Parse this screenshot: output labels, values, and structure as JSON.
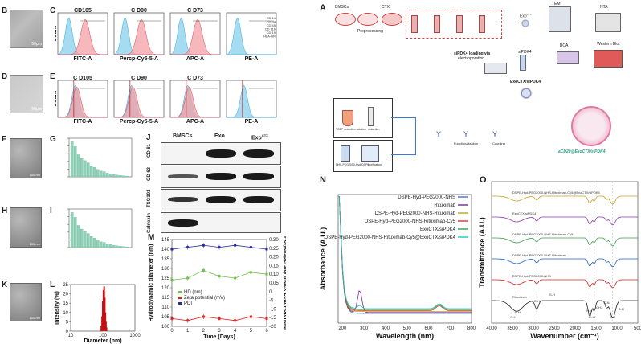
{
  "panels": {
    "B": "B",
    "C": "C",
    "D": "D",
    "E": "E",
    "F": "F",
    "G": "G",
    "H": "H",
    "I": "I",
    "J": "J",
    "K": "K",
    "L": "L",
    "M": "M",
    "A": "A",
    "N": "N",
    "O": "O"
  },
  "flow_C": {
    "titles": [
      "CD105",
      "C D90",
      "C D73",
      ""
    ],
    "xlabels": [
      "FITC-A",
      "Percp-Cy5-5-A",
      "APC-A",
      "PE-A"
    ],
    "ylabel": "Count",
    "legend": [
      "CD 14",
      "CD 34",
      "CD 45",
      "CD 11b",
      "CD 19",
      "HLA-DR"
    ]
  },
  "flow_E": {
    "titles": [
      "C D105",
      "C D90",
      "C D73",
      ""
    ],
    "xlabels": [
      "FITC-A",
      "Percp-Cy5-5-A",
      "APC-A",
      "PE-A"
    ],
    "ylabel": "Count"
  },
  "western_J": {
    "columns": [
      "BMSCs",
      "Exo",
      "Exo"
    ],
    "col3_sup": "CTX",
    "rows": [
      "CD 81",
      "CD 63",
      "TSG101",
      "Calnexin"
    ]
  },
  "scale_bars": {
    "micro": "50µm",
    "tem": "100 nm"
  },
  "chart_data": [
    {
      "id": "L",
      "type": "bar",
      "xlabel": "Diameter (nm)",
      "ylabel": "Intensity (%)",
      "xscale": "log",
      "xlim": [
        10,
        1000
      ],
      "ylim": [
        0,
        25
      ],
      "yticks": [
        0,
        5,
        10,
        15,
        20,
        25
      ],
      "xticks": [
        "10",
        "100",
        "1000"
      ],
      "x": [
        90,
        95,
        100,
        105,
        110,
        115,
        120,
        125,
        130
      ],
      "values": [
        3,
        8,
        16,
        22,
        24,
        18,
        10,
        5,
        2
      ]
    },
    {
      "id": "M",
      "type": "line",
      "title": "",
      "xlabel": "Time (Days)",
      "ylabel": "Hydrodynamic diameter (nm)",
      "ylabel2": "Polydispersity index  Zeta Potential",
      "x": [
        0,
        1,
        2,
        3,
        4,
        5,
        6
      ],
      "xticks": [
        "0",
        "1",
        "2",
        "3",
        "4",
        "5",
        "6"
      ],
      "ylim": [
        100,
        145
      ],
      "yticks": [
        "100",
        "105",
        "110",
        "115",
        "120",
        "125",
        "130",
        "135",
        "140",
        "145"
      ],
      "y2ticks": [
        "-20",
        "-15",
        "-10",
        "-5",
        "0",
        "0.05",
        "0.10",
        "0.15",
        "0.20",
        "0.25",
        "0.30"
      ],
      "series": [
        {
          "name": "HD (nm)",
          "color": "#6fbf4a",
          "values": [
            124,
            125,
            129,
            126,
            125,
            128,
            127
          ]
        },
        {
          "name": "Zeta potential (mV)",
          "color": "#e02020",
          "values": [
            104,
            103,
            105,
            104,
            103,
            105,
            104
          ]
        },
        {
          "name": "PDI",
          "color": "#2a2a9e",
          "values": [
            140,
            141,
            142,
            141,
            142,
            141,
            140
          ]
        }
      ]
    },
    {
      "id": "N",
      "type": "line",
      "xlabel": "Wavelength (nm)",
      "ylabel": "Absorbance (A.U.)",
      "xlim": [
        180,
        800
      ],
      "xticks": [
        "200",
        "300",
        "400",
        "500",
        "600",
        "700",
        "800"
      ],
      "series": [
        {
          "name": "DSPE-Hyd-PEG2000-NHS",
          "color": "#4b6fc4"
        },
        {
          "name": "Rituximab",
          "color": "#7a2a8a"
        },
        {
          "name": "DSPE-Hyd-PEG2000-NHS-Rituximab",
          "color": "#c8a020"
        },
        {
          "name": "DSPE-Hyd-PEG2000-NHS-Rituximab-Cy5",
          "color": "#d23a2a"
        },
        {
          "name": "ExoCTX/siPDK4",
          "color": "#3aa04a"
        },
        {
          "name": "DSPE-Hyd-PEG2000-NHS-Rituximab-Cy5@ExoCTX/siPDK4",
          "color": "#20c0c0"
        }
      ]
    },
    {
      "id": "O",
      "type": "line",
      "xlabel": "Wavenumber (cm⁻¹)",
      "ylabel": "Transmittance (A.U.)",
      "xlim": [
        4000,
        500
      ],
      "xticks": [
        "4000",
        "3500",
        "3000",
        "2500",
        "2000",
        "1500",
        "1000",
        "500"
      ],
      "series": [
        {
          "name": "DSPE-Hyd-PEG2000-NHS-Rituximab-Cy5@ExoCTX/siPDK4",
          "color": "#c8a020"
        },
        {
          "name": "ExoCTX/siPDK4",
          "color": "#8a3ab0"
        },
        {
          "name": "DSPE-Hyd-PEG2000-NHS-Rituximab-Cy5",
          "color": "#3aa04a"
        },
        {
          "name": "DSPE-Hyd-PEG2000-NHS-Rituximab",
          "color": "#2060c0"
        },
        {
          "name": "DSPE-Hyd-PEG2000-NHS",
          "color": "#d02020"
        },
        {
          "name": "Rituximab",
          "color": "#222222"
        }
      ],
      "annotations": [
        "N-H",
        "O-H",
        "C-H",
        "S-H",
        "N-H",
        "C=O",
        "-CH3",
        "C-N",
        "C-O",
        "C-H"
      ]
    }
  ],
  "schematic_A": {
    "bmsc": "BMSCs",
    "ctx": "CTX",
    "preprocessing": "Preprocessing",
    "exo": "Exo",
    "exo_sup": "CTX",
    "tem": "TEM",
    "nta": "NTA",
    "bca": "BCA",
    "western": "Western Blot",
    "sipdk4_loading": "siPDK4 loading via",
    "electroporation": "electroporation",
    "sipdk4": "siPDK4",
    "exo_si": "ExoCTX/siPDK4",
    "tcep": "TCEP reduction solution",
    "reduction": "reduction",
    "functionalization": "Functionalization",
    "coupling": "Coupling",
    "nhs": "NHS-PEG2000-Hyd-DSPE",
    "purification": "purification",
    "product": "aCD20@ExoCTX/siPDK4"
  }
}
